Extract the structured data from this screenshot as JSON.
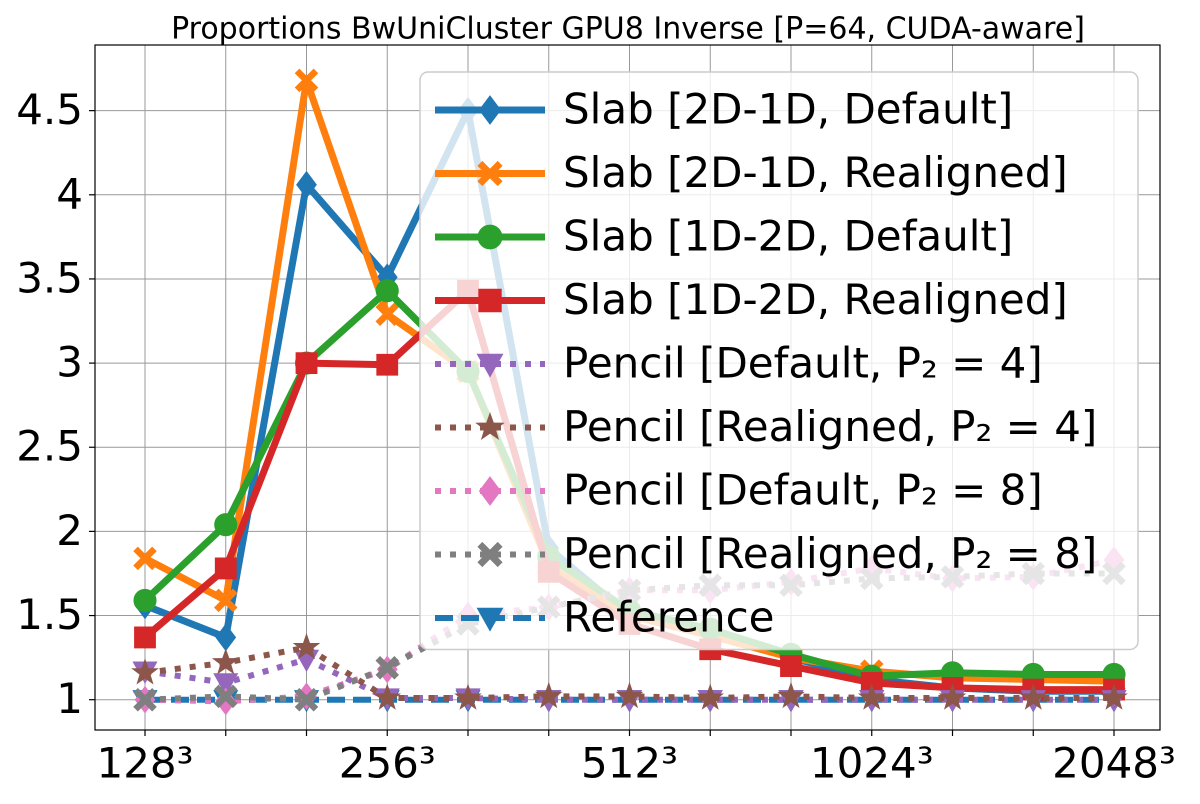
{
  "chart_data": {
    "type": "line",
    "title": "Proportions BwUniCluster GPU8 Inverse [P=64, CUDA-aware]",
    "categories": [
      "128³",
      null,
      null,
      "256³",
      null,
      null,
      "512³",
      null,
      null,
      "1024³",
      null,
      null,
      "2048³"
    ],
    "ylim": [
      0.82,
      4.89
    ],
    "yticks": [
      1.0,
      1.5,
      2.0,
      2.5,
      3.0,
      3.5,
      4.0,
      4.5
    ],
    "grid": true,
    "legend": "upper right",
    "series": [
      {
        "name": "Reference",
        "color": "#1f77b4",
        "marker": "triangle-down",
        "style": "dashed",
        "values": [
          1,
          1,
          1,
          1,
          1,
          1,
          1,
          1,
          1,
          1,
          1,
          1,
          1
        ]
      },
      {
        "name": "Slab [2D-1D, Default]",
        "color": "#1f77b4",
        "marker": "diamond",
        "style": "solid",
        "values": [
          1.56,
          1.37,
          4.06,
          3.51,
          4.5,
          1.9,
          1.5,
          1.4,
          1.25,
          1.12,
          1.07,
          1.05,
          1.05
        ]
      },
      {
        "name": "Slab [2D-1D, Realigned]",
        "color": "#ff7f0e",
        "marker": "x",
        "style": "solid",
        "values": [
          1.84,
          1.59,
          4.68,
          3.29,
          2.95,
          1.8,
          1.5,
          1.38,
          1.25,
          1.17,
          1.13,
          1.12,
          1.11
        ]
      },
      {
        "name": "Slab [1D-2D, Default]",
        "color": "#2ca02c",
        "marker": "circle",
        "style": "solid",
        "values": [
          1.59,
          2.04,
          3.0,
          3.43,
          2.95,
          1.85,
          1.53,
          1.42,
          1.27,
          1.14,
          1.16,
          1.15,
          1.15
        ]
      },
      {
        "name": "Slab [1D-2D, Realigned]",
        "color": "#d62728",
        "marker": "square",
        "style": "solid",
        "values": [
          1.37,
          1.78,
          3.0,
          2.99,
          3.43,
          1.76,
          1.45,
          1.3,
          1.2,
          1.1,
          1.07,
          1.06,
          1.06
        ]
      },
      {
        "name": "Pencil [Default, P₂ = 4]",
        "color": "#9467bd",
        "marker": "triangle-down",
        "style": "dotted",
        "values": [
          1.17,
          1.1,
          1.24,
          1.01,
          1.01,
          1.0,
          1.0,
          1.0,
          1.0,
          1.0,
          1.0,
          1.0,
          1.0
        ]
      },
      {
        "name": "Pencil [Realigned, P₂ = 4]",
        "color": "#8c564b",
        "marker": "star",
        "style": "dotted",
        "values": [
          1.16,
          1.22,
          1.31,
          1.01,
          1.01,
          1.02,
          1.02,
          1.01,
          1.02,
          1.01,
          1.01,
          1.01,
          1.01
        ]
      },
      {
        "name": "Pencil [Default, P₂ = 8]",
        "color": "#e377c2",
        "marker": "diamond",
        "style": "dotted",
        "values": [
          1.0,
          0.99,
          1.02,
          1.18,
          1.5,
          1.55,
          1.65,
          1.65,
          1.7,
          1.78,
          1.72,
          1.73,
          1.83
        ]
      },
      {
        "name": "Pencil [Realigned, P₂ = 8]",
        "color": "#7f7f7f",
        "marker": "x",
        "style": "dotted",
        "values": [
          1.0,
          1.02,
          1.0,
          1.19,
          1.45,
          1.55,
          1.65,
          1.68,
          1.68,
          1.72,
          1.73,
          1.75,
          1.75
        ]
      }
    ],
    "legend_order": [
      1,
      2,
      3,
      4,
      5,
      6,
      7,
      8,
      0
    ]
  }
}
